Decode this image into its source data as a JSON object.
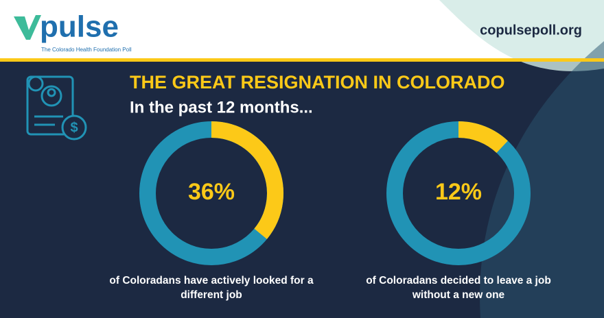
{
  "header": {
    "logo": "pulse",
    "logo_tagline": "The Colorado Health Foundation Poll",
    "website": "copulsepoll.org",
    "title": "THE GREAT RESIGNATION IN COLORADO",
    "subtitle": "In the past 12 months..."
  },
  "chart_data": [
    {
      "type": "donut",
      "values": [
        36
      ],
      "value_labels": [
        "36%"
      ],
      "color": "#fcc918",
      "track_color": "#2193b5",
      "caption": [
        "of Coloradans have actively looked for a",
        "different job"
      ]
    },
    {
      "type": "donut",
      "values": [
        12
      ],
      "value_labels": [
        "12%"
      ],
      "color": "#fcc918",
      "track_color": "#2193b5",
      "caption": [
        "of Coloradans decided to leave a job",
        "without a new one"
      ]
    }
  ]
}
